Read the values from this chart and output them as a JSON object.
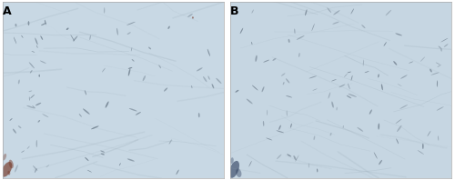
{
  "fig_width": 5.0,
  "fig_height": 1.98,
  "dpi": 100,
  "panel_A_label": "A",
  "panel_B_label": "B",
  "label_fontsize": 9,
  "label_fontweight": "bold",
  "outer_bg": "#ffffff",
  "panel_A_bg": "#c8d8e4",
  "panel_B_bg": "#c6d6e2",
  "nucleus_color_A": "#4a5a6a",
  "nucleus_color_B": "#4a5868",
  "brown_color_A": "#7a4030",
  "fiber_color_A": "#9aacb8",
  "fiber_color_B": "#96a8b4",
  "border_color": "#aaaaaa"
}
